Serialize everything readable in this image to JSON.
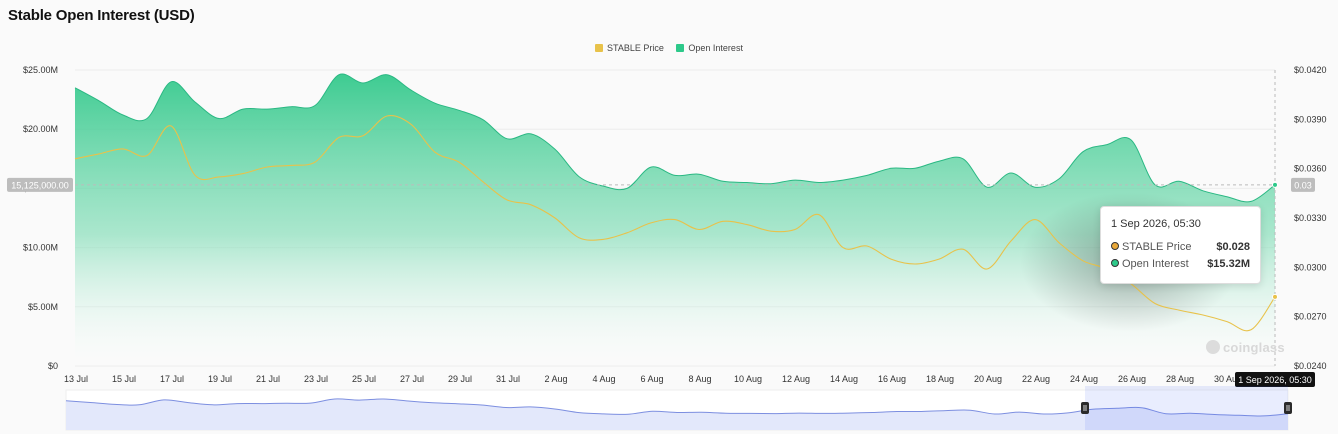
{
  "title": "Stable Open Interest (USD)",
  "legend": [
    {
      "label": "STABLE Price",
      "color": "#e8c24a"
    },
    {
      "label": "Open Interest",
      "color": "#2dc98a"
    }
  ],
  "crosshair": {
    "left_label": "15,125,000.00",
    "right_label": "0.03",
    "x_label": "1 Sep 2026, 05:30"
  },
  "tooltip": {
    "title": "1 Sep 2026, 05:30",
    "rows": [
      {
        "label": "STABLE Price",
        "value": "$0.028",
        "color": "#e8a83a"
      },
      {
        "label": "Open Interest",
        "value": "$15.32M",
        "color": "#2dc98a"
      }
    ]
  },
  "watermark": "coinglass",
  "chart_data": {
    "type": "area",
    "title": "Stable Open Interest (USD)",
    "x_tick_labels": [
      "13 Jul",
      "15 Jul",
      "17 Jul",
      "19 Jul",
      "21 Jul",
      "23 Jul",
      "25 Jul",
      "27 Jul",
      "29 Jul",
      "31 Jul",
      "2 Aug",
      "4 Aug",
      "6 Aug",
      "8 Aug",
      "10 Aug",
      "12 Aug",
      "14 Aug",
      "16 Aug",
      "18 Aug",
      "20 Aug",
      "22 Aug",
      "24 Aug",
      "26 Aug",
      "28 Aug",
      "30 Aug"
    ],
    "y_left": {
      "ticks": [
        "$0",
        "$5.00M",
        "$10.00M",
        "$15.00M",
        "$20.00M",
        "$25.00M"
      ],
      "range": [
        0,
        25000000
      ]
    },
    "y_right": {
      "ticks": [
        "$0.0240",
        "$0.0270",
        "$0.0300",
        "$0.0330",
        "$0.0360",
        "$0.0390",
        "$0.0420"
      ],
      "range": [
        0.024,
        0.042
      ]
    },
    "grid": true,
    "legend_position": "top-center",
    "series": [
      {
        "name": "Open Interest",
        "type": "area",
        "axis": "left",
        "color": "#2dc98a",
        "x": [
          "13 Jul",
          "14 Jul",
          "15 Jul",
          "16 Jul",
          "17 Jul",
          "18 Jul",
          "19 Jul",
          "20 Jul",
          "21 Jul",
          "22 Jul",
          "23 Jul",
          "24 Jul",
          "25 Jul",
          "26 Jul",
          "27 Jul",
          "28 Jul",
          "29 Jul",
          "30 Jul",
          "31 Jul",
          "1 Aug",
          "2 Aug",
          "3 Aug",
          "4 Aug",
          "5 Aug",
          "6 Aug",
          "7 Aug",
          "8 Aug",
          "9 Aug",
          "10 Aug",
          "11 Aug",
          "12 Aug",
          "13 Aug",
          "14 Aug",
          "15 Aug",
          "16 Aug",
          "17 Aug",
          "18 Aug",
          "19 Aug",
          "20 Aug",
          "21 Aug",
          "22 Aug",
          "23 Aug",
          "24 Aug",
          "25 Aug",
          "26 Aug",
          "27 Aug",
          "28 Aug",
          "29 Aug",
          "30 Aug",
          "31 Aug",
          "1 Sep"
        ],
        "values": [
          23.5,
          22.4,
          21.2,
          20.9,
          24.0,
          22.3,
          20.9,
          21.7,
          21.7,
          21.9,
          22.0,
          24.6,
          23.9,
          24.6,
          23.3,
          22.2,
          21.6,
          20.8,
          19.2,
          19.6,
          18.3,
          16.0,
          15.2,
          15.0,
          16.8,
          16.1,
          16.2,
          15.6,
          15.5,
          15.4,
          15.7,
          15.5,
          15.7,
          16.1,
          16.7,
          16.7,
          17.3,
          17.5,
          15.1,
          16.3,
          15.1,
          15.8,
          18.1,
          18.7,
          19.1,
          15.3,
          15.6,
          14.8,
          14.3,
          13.9,
          15.3
        ]
      },
      {
        "name": "STABLE Price",
        "type": "line",
        "axis": "right",
        "color": "#e8c24a",
        "x": [
          "13 Jul",
          "14 Jul",
          "15 Jul",
          "16 Jul",
          "17 Jul",
          "18 Jul",
          "19 Jul",
          "20 Jul",
          "21 Jul",
          "22 Jul",
          "23 Jul",
          "24 Jul",
          "25 Jul",
          "26 Jul",
          "27 Jul",
          "28 Jul",
          "29 Jul",
          "30 Jul",
          "31 Jul",
          "1 Aug",
          "2 Aug",
          "3 Aug",
          "4 Aug",
          "5 Aug",
          "6 Aug",
          "7 Aug",
          "8 Aug",
          "9 Aug",
          "10 Aug",
          "11 Aug",
          "12 Aug",
          "13 Aug",
          "14 Aug",
          "15 Aug",
          "16 Aug",
          "17 Aug",
          "18 Aug",
          "19 Aug",
          "20 Aug",
          "21 Aug",
          "22 Aug",
          "23 Aug",
          "24 Aug",
          "25 Aug",
          "26 Aug",
          "27 Aug",
          "28 Aug",
          "29 Aug",
          "30 Aug",
          "31 Aug",
          "1 Sep"
        ],
        "values": [
          0.0366,
          0.0369,
          0.0372,
          0.0368,
          0.0386,
          0.0356,
          0.0355,
          0.0357,
          0.0361,
          0.0362,
          0.0364,
          0.0379,
          0.038,
          0.0392,
          0.0387,
          0.037,
          0.0364,
          0.0352,
          0.0341,
          0.0338,
          0.033,
          0.0318,
          0.0317,
          0.0321,
          0.0327,
          0.0329,
          0.0323,
          0.0328,
          0.0326,
          0.0322,
          0.0323,
          0.0332,
          0.0312,
          0.0313,
          0.0305,
          0.0302,
          0.0305,
          0.0311,
          0.0299,
          0.0316,
          0.0329,
          0.0315,
          0.0304,
          0.0299,
          0.029,
          0.0278,
          0.0274,
          0.0271,
          0.0267,
          0.0262,
          0.0282
        ]
      }
    ]
  }
}
